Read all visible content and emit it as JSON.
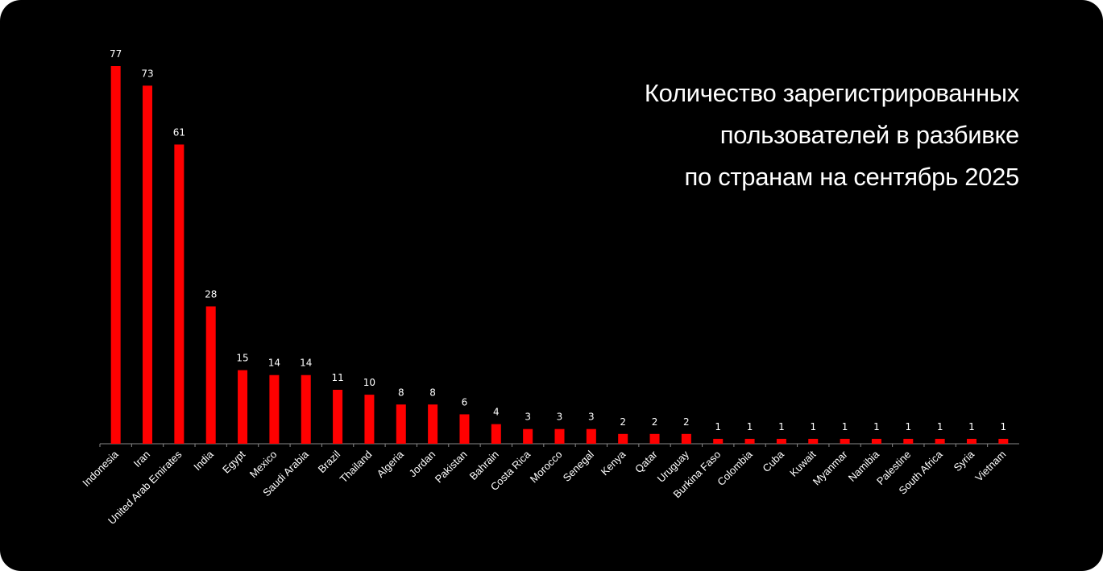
{
  "title_lines": [
    "Количество зарегистрированных",
    "пользователей в разбивке",
    "по странам на сентябрь 2025"
  ],
  "colors": {
    "background": "#000000",
    "bar": "#ff0000",
    "text": "#ffffff",
    "axis": "#888888"
  },
  "chart_data": {
    "type": "bar",
    "title": "Количество зарегистрированных пользователей в разбивке по странам на сентябрь 2025",
    "categories": [
      "Indonesia",
      "Iran",
      "United Arab Emirates",
      "India",
      "Egypt",
      "Mexico",
      "Saudi Arabia",
      "Brazil",
      "Thailand",
      "Algeria",
      "Jordan",
      "Pakistan",
      "Bahrain",
      "Costa Rica",
      "Morocco",
      "Senegal",
      "Kenya",
      "Qatar",
      "Uruguay",
      "Burkina Faso",
      "Colombia",
      "Cuba",
      "Kuwait",
      "Myanmar",
      "Namibia",
      "Palestine",
      "South Africa",
      "Syria",
      "Vietnam"
    ],
    "values": [
      77,
      73,
      61,
      28,
      15,
      14,
      14,
      11,
      10,
      8,
      8,
      6,
      4,
      3,
      3,
      3,
      2,
      2,
      2,
      1,
      1,
      1,
      1,
      1,
      1,
      1,
      1,
      1,
      1
    ],
    "data_labels": [
      "77",
      "73",
      "61",
      "28",
      "15",
      "14",
      "14",
      "11",
      "10",
      "8",
      "8",
      "6",
      "4",
      "3",
      "3",
      "3",
      "2",
      "2",
      "2",
      "1",
      "1",
      "1",
      "1",
      "1",
      "1",
      "1",
      "1",
      "1",
      "1"
    ],
    "xlabel": "",
    "ylabel": "",
    "ylim": [
      0,
      77
    ],
    "grid": false,
    "legend": "none"
  }
}
